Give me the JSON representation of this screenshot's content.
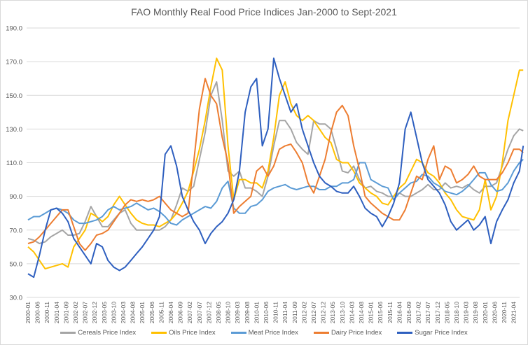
{
  "chart_data": {
    "type": "line",
    "title": "FAO Monthly Real Food Price Indices Jan-2000 to Sept-2021",
    "xlabel": "",
    "ylabel": "",
    "ylim": [
      30,
      190
    ],
    "yticks": [
      "30.0",
      "50.0",
      "70.0",
      "90.0",
      "110.0",
      "130.0",
      "150.0",
      "170.0",
      "190.0"
    ],
    "grid": "horizontal",
    "legend_position": "bottom",
    "xtick_labels": [
      "2000-01",
      "2000-06",
      "2000-11",
      "2001-04",
      "2001-09",
      "2002-02",
      "2002-07",
      "2002-12",
      "2003-05",
      "2003-10",
      "2004-03",
      "2004-08",
      "2005-01",
      "2005-06",
      "2005-11",
      "2006-04",
      "2006-09",
      "2007-02",
      "2007-07",
      "2007-12",
      "2008-05",
      "2008-10",
      "2009-03",
      "2009-08",
      "2010-01",
      "2010-06",
      "2010-11",
      "2011-04",
      "2011-09",
      "2012-02",
      "2012-07",
      "2012-12",
      "2013-05",
      "2013-10",
      "2014-03",
      "2014-08",
      "2015-01",
      "2015-06",
      "2015-11",
      "2016-04",
      "2016-09",
      "2017-02",
      "2017-07",
      "2017-12",
      "2018-05",
      "2018-10",
      "2019-03",
      "2019-08",
      "2020-01",
      "2020-06",
      "2020-11",
      "2021-04"
    ],
    "x": [
      "2000-01",
      "2000-04",
      "2000-07",
      "2000-10",
      "2001-01",
      "2001-04",
      "2001-07",
      "2001-10",
      "2002-01",
      "2002-04",
      "2002-07",
      "2002-10",
      "2003-01",
      "2003-04",
      "2003-07",
      "2003-10",
      "2004-01",
      "2004-04",
      "2004-07",
      "2004-10",
      "2005-01",
      "2005-04",
      "2005-07",
      "2005-10",
      "2006-01",
      "2006-04",
      "2006-07",
      "2006-10",
      "2007-01",
      "2007-04",
      "2007-07",
      "2007-10",
      "2008-01",
      "2008-04",
      "2008-07",
      "2008-10",
      "2009-01",
      "2009-04",
      "2009-07",
      "2009-10",
      "2010-01",
      "2010-04",
      "2010-07",
      "2010-10",
      "2011-01",
      "2011-04",
      "2011-07",
      "2011-10",
      "2012-01",
      "2012-04",
      "2012-07",
      "2012-10",
      "2013-01",
      "2013-04",
      "2013-07",
      "2013-10",
      "2014-01",
      "2014-04",
      "2014-07",
      "2014-10",
      "2015-01",
      "2015-04",
      "2015-07",
      "2015-10",
      "2016-01",
      "2016-04",
      "2016-07",
      "2016-10",
      "2017-01",
      "2017-04",
      "2017-07",
      "2017-10",
      "2018-01",
      "2018-04",
      "2018-07",
      "2018-10",
      "2019-01",
      "2019-04",
      "2019-07",
      "2019-10",
      "2020-01",
      "2020-04",
      "2020-07",
      "2020-10",
      "2021-01",
      "2021-04",
      "2021-07",
      "2021-09"
    ],
    "series": [
      {
        "name": "Cereals Price Index",
        "color": "#a5a5a5",
        "values": [
          65,
          64,
          62,
          63,
          66,
          68,
          70,
          67,
          67,
          68,
          75,
          84,
          78,
          72,
          72,
          76,
          80,
          82,
          74,
          70,
          70,
          70,
          70,
          70,
          72,
          76,
          85,
          95,
          93,
          96,
          112,
          128,
          150,
          158,
          135,
          105,
          102,
          105,
          95,
          95,
          93,
          90,
          102,
          120,
          135,
          135,
          130,
          122,
          118,
          115,
          135,
          133,
          133,
          130,
          118,
          105,
          104,
          108,
          100,
          95,
          96,
          93,
          92,
          90,
          90,
          92,
          90,
          90,
          92,
          94,
          97,
          94,
          94,
          98,
          95,
          96,
          95,
          97,
          94,
          92,
          96,
          96,
          98,
          108,
          118,
          126,
          130,
          129
        ]
      },
      {
        "name": "Oils Price Index",
        "color": "#ffc000",
        "values": [
          60,
          57,
          52,
          47,
          48,
          49,
          50,
          48,
          60,
          65,
          70,
          80,
          78,
          75,
          78,
          85,
          90,
          85,
          80,
          76,
          74,
          73,
          73,
          72,
          74,
          76,
          80,
          86,
          93,
          105,
          118,
          135,
          155,
          172,
          165,
          120,
          88,
          100,
          100,
          98,
          98,
          95,
          105,
          125,
          150,
          158,
          145,
          138,
          135,
          138,
          135,
          130,
          125,
          122,
          112,
          110,
          110,
          105,
          98,
          95,
          92,
          90,
          86,
          85,
          90,
          95,
          98,
          105,
          112,
          110,
          104,
          102,
          98,
          92,
          88,
          82,
          78,
          77,
          76,
          82,
          100,
          82,
          90,
          110,
          135,
          150,
          165,
          165
        ]
      },
      {
        "name": "Meat Price Index",
        "color": "#5b9bd5",
        "values": [
          76,
          78,
          78,
          80,
          82,
          83,
          82,
          80,
          76,
          74,
          74,
          75,
          76,
          78,
          82,
          84,
          82,
          83,
          84,
          86,
          84,
          82,
          83,
          81,
          78,
          74,
          73,
          76,
          78,
          80,
          82,
          84,
          83,
          87,
          95,
          99,
          83,
          80,
          80,
          84,
          85,
          88,
          93,
          95,
          96,
          97,
          95,
          94,
          95,
          96,
          96,
          94,
          94,
          96,
          96,
          98,
          98,
          100,
          110,
          110,
          100,
          98,
          96,
          95,
          88,
          92,
          95,
          98,
          99,
          103,
          102,
          98,
          96,
          93,
          92,
          91,
          93,
          96,
          100,
          104,
          104,
          97,
          93,
          94,
          98,
          105,
          110,
          112
        ]
      },
      {
        "name": "Dairy Price Index",
        "color": "#ed7d31",
        "values": [
          62,
          63,
          66,
          70,
          74,
          78,
          82,
          82,
          72,
          62,
          58,
          62,
          67,
          68,
          70,
          75,
          80,
          85,
          88,
          87,
          88,
          87,
          88,
          90,
          86,
          82,
          80,
          78,
          80,
          110,
          142,
          160,
          150,
          145,
          125,
          110,
          80,
          84,
          87,
          90,
          105,
          108,
          102,
          108,
          118,
          120,
          121,
          116,
          110,
          98,
          92,
          102,
          112,
          128,
          140,
          144,
          138,
          120,
          106,
          90,
          86,
          83,
          80,
          78,
          76,
          76,
          82,
          92,
          102,
          100,
          112,
          120,
          100,
          108,
          106,
          98,
          100,
          103,
          108,
          102,
          100,
          100,
          100,
          104,
          110,
          118,
          118,
          116
        ]
      },
      {
        "name": "Sugar Price Index",
        "color": "#2e5fbf",
        "values": [
          44,
          42,
          55,
          70,
          82,
          83,
          80,
          75,
          65,
          60,
          55,
          50,
          62,
          60,
          52,
          48,
          46,
          48,
          52,
          56,
          60,
          65,
          70,
          78,
          115,
          120,
          108,
          90,
          82,
          75,
          70,
          62,
          68,
          72,
          75,
          80,
          88,
          105,
          140,
          155,
          160,
          120,
          130,
          172,
          160,
          150,
          140,
          145,
          130,
          120,
          110,
          102,
          98,
          96,
          93,
          92,
          92,
          96,
          90,
          83,
          80,
          78,
          72,
          78,
          86,
          98,
          130,
          140,
          125,
          110,
          100,
          96,
          92,
          85,
          75,
          70,
          73,
          76,
          70,
          73,
          78,
          62,
          75,
          82,
          88,
          98,
          105,
          120
        ]
      }
    ]
  }
}
